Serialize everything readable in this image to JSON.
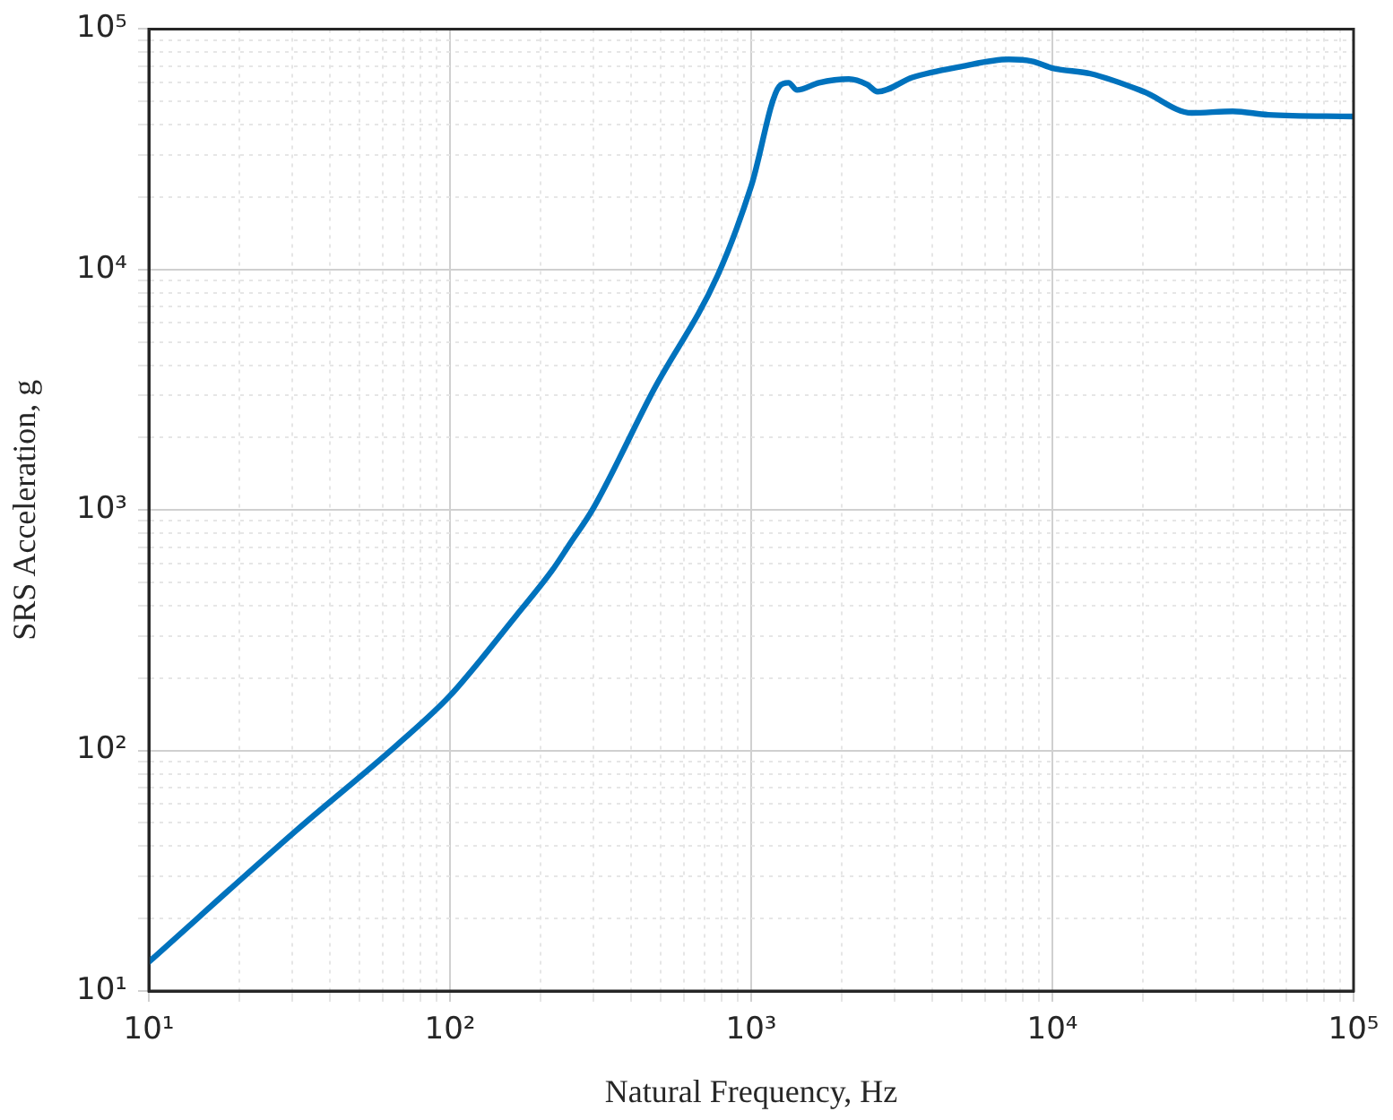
{
  "chart_data": {
    "type": "line",
    "xlabel": "Natural Frequency, Hz",
    "ylabel": "SRS Acceleration, g",
    "log": "xy",
    "grid": true,
    "marker": "none",
    "line_style": "solid",
    "xlim": [
      10,
      100000
    ],
    "ylim": [
      10,
      100000
    ],
    "xticks": [
      {
        "value": 10,
        "label": "10¹"
      },
      {
        "value": 20,
        "label": null
      },
      {
        "value": 30,
        "label": null
      },
      {
        "value": 40,
        "label": null
      },
      {
        "value": 50,
        "label": null
      },
      {
        "value": 60,
        "label": null
      },
      {
        "value": 70,
        "label": null
      },
      {
        "value": 80,
        "label": null
      },
      {
        "value": 90,
        "label": null
      },
      {
        "value": 100,
        "label": "10²"
      },
      {
        "value": 200,
        "label": null
      },
      {
        "value": 300,
        "label": null
      },
      {
        "value": 400,
        "label": null
      },
      {
        "value": 500,
        "label": null
      },
      {
        "value": 600,
        "label": null
      },
      {
        "value": 700,
        "label": null
      },
      {
        "value": 800,
        "label": null
      },
      {
        "value": 900,
        "label": null
      },
      {
        "value": 1000,
        "label": "10³"
      },
      {
        "value": 2000,
        "label": null
      },
      {
        "value": 3000,
        "label": null
      },
      {
        "value": 4000,
        "label": null
      },
      {
        "value": 5000,
        "label": null
      },
      {
        "value": 6000,
        "label": null
      },
      {
        "value": 7000,
        "label": null
      },
      {
        "value": 8000,
        "label": null
      },
      {
        "value": 9000,
        "label": null
      },
      {
        "value": 10000,
        "label": "10⁴"
      },
      {
        "value": 20000,
        "label": null
      },
      {
        "value": 30000,
        "label": null
      },
      {
        "value": 40000,
        "label": null
      },
      {
        "value": 50000,
        "label": null
      },
      {
        "value": 60000,
        "label": null
      },
      {
        "value": 70000,
        "label": null
      },
      {
        "value": 80000,
        "label": null
      },
      {
        "value": 90000,
        "label": null
      },
      {
        "value": 100000,
        "label": "10⁵"
      }
    ],
    "yticks": [
      {
        "value": 10,
        "label": "10¹"
      },
      {
        "value": 20,
        "label": null
      },
      {
        "value": 30,
        "label": null
      },
      {
        "value": 40,
        "label": null
      },
      {
        "value": 50,
        "label": null
      },
      {
        "value": 60,
        "label": null
      },
      {
        "value": 70,
        "label": null
      },
      {
        "value": 80,
        "label": null
      },
      {
        "value": 90,
        "label": null
      },
      {
        "value": 100,
        "label": "10²"
      },
      {
        "value": 200,
        "label": null
      },
      {
        "value": 300,
        "label": null
      },
      {
        "value": 400,
        "label": null
      },
      {
        "value": 500,
        "label": null
      },
      {
        "value": 600,
        "label": null
      },
      {
        "value": 700,
        "label": null
      },
      {
        "value": 800,
        "label": null
      },
      {
        "value": 900,
        "label": null
      },
      {
        "value": 1000,
        "label": "10³"
      },
      {
        "value": 2000,
        "label": null
      },
      {
        "value": 3000,
        "label": null
      },
      {
        "value": 4000,
        "label": null
      },
      {
        "value": 5000,
        "label": null
      },
      {
        "value": 6000,
        "label": null
      },
      {
        "value": 7000,
        "label": null
      },
      {
        "value": 8000,
        "label": null
      },
      {
        "value": 9000,
        "label": null
      },
      {
        "value": 10000,
        "label": "10⁴"
      },
      {
        "value": 20000,
        "label": null
      },
      {
        "value": 30000,
        "label": null
      },
      {
        "value": 40000,
        "label": null
      },
      {
        "value": 50000,
        "label": null
      },
      {
        "value": 60000,
        "label": null
      },
      {
        "value": 70000,
        "label": null
      },
      {
        "value": 80000,
        "label": null
      },
      {
        "value": 90000,
        "label": null
      },
      {
        "value": 100000,
        "label": "10⁵"
      }
    ],
    "series": [
      {
        "color": "#0072bd",
        "x": [
          10,
          31,
          67,
          100,
          166,
          218,
          250,
          299,
          474,
          773,
          1000,
          1240,
          1330,
          1420,
          1680,
          2110,
          2420,
          2630,
          3440,
          4970,
          7160,
          8550,
          10100,
          13400,
          20100,
          29000,
          39700,
          52100,
          100000
        ],
        "values": [
          13.2,
          46.7,
          106,
          169,
          364,
          559,
          723,
          1016,
          3150,
          9420,
          22200,
          57800,
          59800,
          55800,
          59800,
          61900,
          58900,
          54900,
          63000,
          69800,
          74800,
          73500,
          68600,
          65200,
          54900,
          44800,
          45500,
          44000,
          43300
        ]
      }
    ]
  }
}
